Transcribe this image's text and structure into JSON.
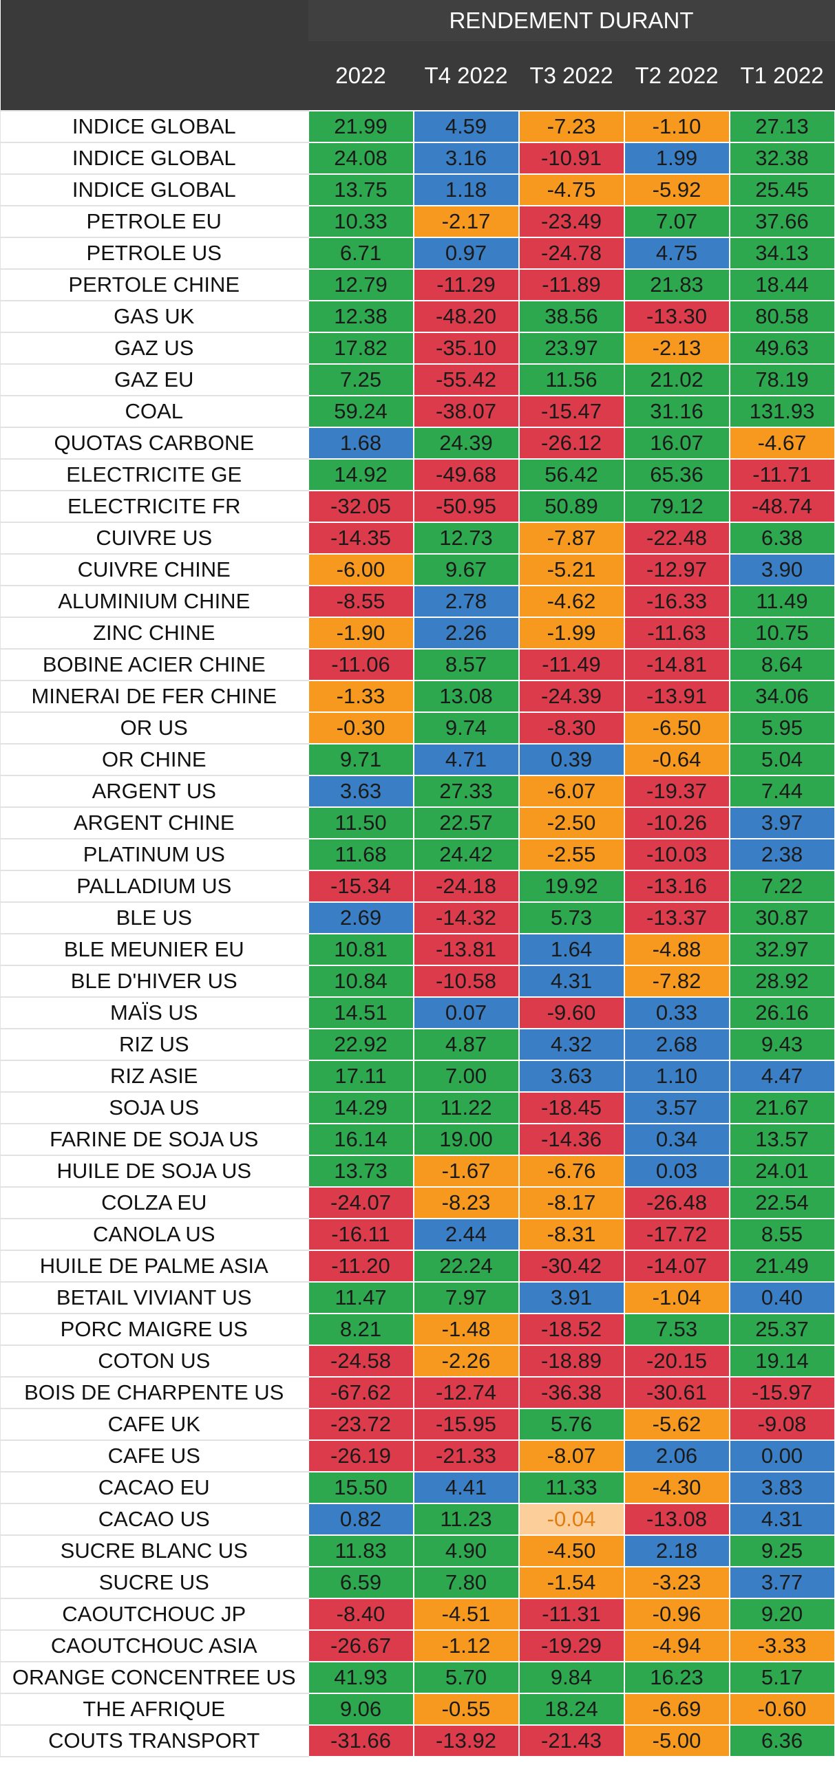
{
  "header": {
    "group_title": "RENDEMENT DURANT",
    "columns": [
      "2022",
      "T4 2022",
      "T3 2022",
      "T2 2022",
      "T1 2022"
    ]
  },
  "colors": {
    "g": "#2ea84f",
    "b": "#3a7fc6",
    "o": "#f7991f",
    "r": "#dc3b4b",
    "l": "#fccf9a"
  },
  "rows": [
    {
      "name": "INDICE GLOBAL",
      "values": [
        "21.99",
        "4.59",
        "-7.23",
        "-1.10",
        "27.13"
      ],
      "colors": [
        "g",
        "b",
        "o",
        "o",
        "g"
      ]
    },
    {
      "name": "INDICE GLOBAL",
      "values": [
        "24.08",
        "3.16",
        "-10.91",
        "1.99",
        "32.38"
      ],
      "colors": [
        "g",
        "b",
        "r",
        "b",
        "g"
      ]
    },
    {
      "name": "INDICE GLOBAL",
      "values": [
        "13.75",
        "1.18",
        "-4.75",
        "-5.92",
        "25.45"
      ],
      "colors": [
        "g",
        "b",
        "o",
        "o",
        "g"
      ]
    },
    {
      "name": "PETROLE EU",
      "values": [
        "10.33",
        "-2.17",
        "-23.49",
        "7.07",
        "37.66"
      ],
      "colors": [
        "g",
        "o",
        "r",
        "g",
        "g"
      ]
    },
    {
      "name": "PETROLE US",
      "values": [
        "6.71",
        "0.97",
        "-24.78",
        "4.75",
        "34.13"
      ],
      "colors": [
        "g",
        "b",
        "r",
        "b",
        "g"
      ]
    },
    {
      "name": "PERTOLE CHINE",
      "values": [
        "12.79",
        "-11.29",
        "-11.89",
        "21.83",
        "18.44"
      ],
      "colors": [
        "g",
        "r",
        "r",
        "g",
        "g"
      ]
    },
    {
      "name": "GAS UK",
      "values": [
        "12.38",
        "-48.20",
        "38.56",
        "-13.30",
        "80.58"
      ],
      "colors": [
        "g",
        "r",
        "g",
        "r",
        "g"
      ]
    },
    {
      "name": "GAZ US",
      "values": [
        "17.82",
        "-35.10",
        "23.97",
        "-2.13",
        "49.63"
      ],
      "colors": [
        "g",
        "r",
        "g",
        "o",
        "g"
      ]
    },
    {
      "name": "GAZ EU",
      "values": [
        "7.25",
        "-55.42",
        "11.56",
        "21.02",
        "78.19"
      ],
      "colors": [
        "g",
        "r",
        "g",
        "g",
        "g"
      ]
    },
    {
      "name": "COAL",
      "values": [
        "59.24",
        "-38.07",
        "-15.47",
        "31.16",
        "131.93"
      ],
      "colors": [
        "g",
        "r",
        "r",
        "g",
        "g"
      ]
    },
    {
      "name": "QUOTAS CARBONE",
      "values": [
        "1.68",
        "24.39",
        "-26.12",
        "16.07",
        "-4.67"
      ],
      "colors": [
        "b",
        "g",
        "r",
        "g",
        "o"
      ]
    },
    {
      "name": "ELECTRICITE GE",
      "values": [
        "14.92",
        "-49.68",
        "56.42",
        "65.36",
        "-11.71"
      ],
      "colors": [
        "g",
        "r",
        "g",
        "g",
        "r"
      ]
    },
    {
      "name": "ELECTRICITE FR",
      "values": [
        "-32.05",
        "-50.95",
        "50.89",
        "79.12",
        "-48.74"
      ],
      "colors": [
        "r",
        "r",
        "g",
        "g",
        "r"
      ]
    },
    {
      "name": "CUIVRE US",
      "values": [
        "-14.35",
        "12.73",
        "-7.87",
        "-22.48",
        "6.38"
      ],
      "colors": [
        "r",
        "g",
        "o",
        "r",
        "g"
      ]
    },
    {
      "name": "CUIVRE CHINE",
      "values": [
        "-6.00",
        "9.67",
        "-5.21",
        "-12.97",
        "3.90"
      ],
      "colors": [
        "o",
        "g",
        "o",
        "r",
        "b"
      ]
    },
    {
      "name": "ALUMINIUM CHINE",
      "values": [
        "-8.55",
        "2.78",
        "-4.62",
        "-16.33",
        "11.49"
      ],
      "colors": [
        "r",
        "b",
        "o",
        "r",
        "g"
      ]
    },
    {
      "name": "ZINC CHINE",
      "values": [
        "-1.90",
        "2.26",
        "-1.99",
        "-11.63",
        "10.75"
      ],
      "colors": [
        "o",
        "b",
        "o",
        "r",
        "g"
      ]
    },
    {
      "name": "BOBINE ACIER CHINE",
      "values": [
        "-11.06",
        "8.57",
        "-11.49",
        "-14.81",
        "8.64"
      ],
      "colors": [
        "r",
        "g",
        "r",
        "r",
        "g"
      ]
    },
    {
      "name": "MINERAI DE FER CHINE",
      "values": [
        "-1.33",
        "13.08",
        "-24.39",
        "-13.91",
        "34.06"
      ],
      "colors": [
        "o",
        "g",
        "r",
        "r",
        "g"
      ]
    },
    {
      "name": "OR US",
      "values": [
        "-0.30",
        "9.74",
        "-8.30",
        "-6.50",
        "5.95"
      ],
      "colors": [
        "o",
        "g",
        "r",
        "o",
        "g"
      ]
    },
    {
      "name": "OR CHINE",
      "values": [
        "9.71",
        "4.71",
        "0.39",
        "-0.64",
        "5.04"
      ],
      "colors": [
        "g",
        "b",
        "b",
        "o",
        "g"
      ]
    },
    {
      "name": "ARGENT US",
      "values": [
        "3.63",
        "27.33",
        "-6.07",
        "-19.37",
        "7.44"
      ],
      "colors": [
        "b",
        "g",
        "o",
        "r",
        "g"
      ]
    },
    {
      "name": "ARGENT CHINE",
      "values": [
        "11.50",
        "22.57",
        "-2.50",
        "-10.26",
        "3.97"
      ],
      "colors": [
        "g",
        "g",
        "o",
        "r",
        "b"
      ]
    },
    {
      "name": "PLATINUM US",
      "values": [
        "11.68",
        "24.42",
        "-2.55",
        "-10.03",
        "2.38"
      ],
      "colors": [
        "g",
        "g",
        "o",
        "r",
        "b"
      ]
    },
    {
      "name": "PALLADIUM US",
      "values": [
        "-15.34",
        "-24.18",
        "19.92",
        "-13.16",
        "7.22"
      ],
      "colors": [
        "r",
        "r",
        "g",
        "r",
        "g"
      ]
    },
    {
      "name": "BLE US",
      "values": [
        "2.69",
        "-14.32",
        "5.73",
        "-13.37",
        "30.87"
      ],
      "colors": [
        "b",
        "r",
        "g",
        "r",
        "g"
      ]
    },
    {
      "name": "BLE MEUNIER EU",
      "values": [
        "10.81",
        "-13.81",
        "1.64",
        "-4.88",
        "32.97"
      ],
      "colors": [
        "g",
        "r",
        "b",
        "o",
        "g"
      ]
    },
    {
      "name": "BLE D'HIVER US",
      "values": [
        "10.84",
        "-10.58",
        "4.31",
        "-7.82",
        "28.92"
      ],
      "colors": [
        "g",
        "r",
        "b",
        "o",
        "g"
      ]
    },
    {
      "name": "MAÏS US",
      "values": [
        "14.51",
        "0.07",
        "-9.60",
        "0.33",
        "26.16"
      ],
      "colors": [
        "g",
        "b",
        "r",
        "b",
        "g"
      ]
    },
    {
      "name": "RIZ US",
      "values": [
        "22.92",
        "4.87",
        "4.32",
        "2.68",
        "9.43"
      ],
      "colors": [
        "g",
        "g",
        "b",
        "b",
        "g"
      ]
    },
    {
      "name": "RIZ ASIE",
      "values": [
        "17.11",
        "7.00",
        "3.63",
        "1.10",
        "4.47"
      ],
      "colors": [
        "g",
        "g",
        "b",
        "b",
        "b"
      ]
    },
    {
      "name": "SOJA US",
      "values": [
        "14.29",
        "11.22",
        "-18.45",
        "3.57",
        "21.67"
      ],
      "colors": [
        "g",
        "g",
        "r",
        "b",
        "g"
      ]
    },
    {
      "name": "FARINE DE SOJA US",
      "values": [
        "16.14",
        "19.00",
        "-14.36",
        "0.34",
        "13.57"
      ],
      "colors": [
        "g",
        "g",
        "r",
        "b",
        "g"
      ]
    },
    {
      "name": "HUILE DE SOJA US",
      "values": [
        "13.73",
        "-1.67",
        "-6.76",
        "0.03",
        "24.01"
      ],
      "colors": [
        "g",
        "o",
        "o",
        "b",
        "g"
      ]
    },
    {
      "name": "COLZA EU",
      "values": [
        "-24.07",
        "-8.23",
        "-8.17",
        "-26.48",
        "22.54"
      ],
      "colors": [
        "r",
        "o",
        "o",
        "r",
        "g"
      ]
    },
    {
      "name": "CANOLA US",
      "values": [
        "-16.11",
        "2.44",
        "-8.31",
        "-17.72",
        "8.55"
      ],
      "colors": [
        "r",
        "b",
        "o",
        "r",
        "g"
      ]
    },
    {
      "name": "HUILE DE PALME ASIA",
      "values": [
        "-11.20",
        "22.24",
        "-30.42",
        "-14.07",
        "21.49"
      ],
      "colors": [
        "r",
        "g",
        "r",
        "r",
        "g"
      ]
    },
    {
      "name": "BETAIL VIVIANT US",
      "values": [
        "11.47",
        "7.97",
        "3.91",
        "-1.04",
        "0.40"
      ],
      "colors": [
        "g",
        "g",
        "b",
        "o",
        "b"
      ]
    },
    {
      "name": "PORC MAIGRE US",
      "values": [
        "8.21",
        "-1.48",
        "-18.52",
        "7.53",
        "25.37"
      ],
      "colors": [
        "g",
        "o",
        "r",
        "g",
        "g"
      ]
    },
    {
      "name": "COTON US",
      "values": [
        "-24.58",
        "-2.26",
        "-18.89",
        "-20.15",
        "19.14"
      ],
      "colors": [
        "r",
        "o",
        "r",
        "r",
        "g"
      ]
    },
    {
      "name": "BOIS DE CHARPENTE US",
      "values": [
        "-67.62",
        "-12.74",
        "-36.38",
        "-30.61",
        "-15.97"
      ],
      "colors": [
        "r",
        "r",
        "r",
        "r",
        "r"
      ]
    },
    {
      "name": "CAFE UK",
      "values": [
        "-23.72",
        "-15.95",
        "5.76",
        "-5.62",
        "-9.08"
      ],
      "colors": [
        "r",
        "r",
        "g",
        "o",
        "r"
      ]
    },
    {
      "name": "CAFE US",
      "values": [
        "-26.19",
        "-21.33",
        "-8.07",
        "2.06",
        "0.00"
      ],
      "colors": [
        "r",
        "r",
        "o",
        "b",
        "b"
      ]
    },
    {
      "name": "CACAO EU",
      "values": [
        "15.50",
        "4.41",
        "11.33",
        "-4.30",
        "3.83"
      ],
      "colors": [
        "g",
        "b",
        "g",
        "o",
        "b"
      ]
    },
    {
      "name": "CACAO US",
      "values": [
        "0.82",
        "11.23",
        "-0.04",
        "-13.08",
        "4.31"
      ],
      "colors": [
        "b",
        "g",
        "l",
        "r",
        "b"
      ]
    },
    {
      "name": "SUCRE BLANC US",
      "values": [
        "11.83",
        "4.90",
        "-4.50",
        "2.18",
        "9.25"
      ],
      "colors": [
        "g",
        "g",
        "o",
        "b",
        "g"
      ]
    },
    {
      "name": "SUCRE US",
      "values": [
        "6.59",
        "7.80",
        "-1.54",
        "-3.23",
        "3.77"
      ],
      "colors": [
        "g",
        "g",
        "o",
        "o",
        "b"
      ]
    },
    {
      "name": "CAOUTCHOUC JP",
      "values": [
        "-8.40",
        "-4.51",
        "-11.31",
        "-0.96",
        "9.20"
      ],
      "colors": [
        "r",
        "o",
        "r",
        "o",
        "g"
      ]
    },
    {
      "name": "CAOUTCHOUC ASIA",
      "values": [
        "-26.67",
        "-1.12",
        "-19.29",
        "-4.94",
        "-3.33"
      ],
      "colors": [
        "r",
        "o",
        "r",
        "o",
        "o"
      ]
    },
    {
      "name": "ORANGE CONCENTREE US",
      "values": [
        "41.93",
        "5.70",
        "9.84",
        "16.23",
        "5.17"
      ],
      "colors": [
        "g",
        "g",
        "g",
        "g",
        "g"
      ]
    },
    {
      "name": "THE AFRIQUE",
      "values": [
        "9.06",
        "-0.55",
        "18.24",
        "-6.69",
        "-0.60"
      ],
      "colors": [
        "g",
        "o",
        "g",
        "o",
        "o"
      ]
    },
    {
      "name": "COUTS TRANSPORT",
      "values": [
        "-31.66",
        "-13.92",
        "-21.43",
        "-5.00",
        "6.36"
      ],
      "colors": [
        "r",
        "r",
        "r",
        "o",
        "g"
      ]
    }
  ]
}
